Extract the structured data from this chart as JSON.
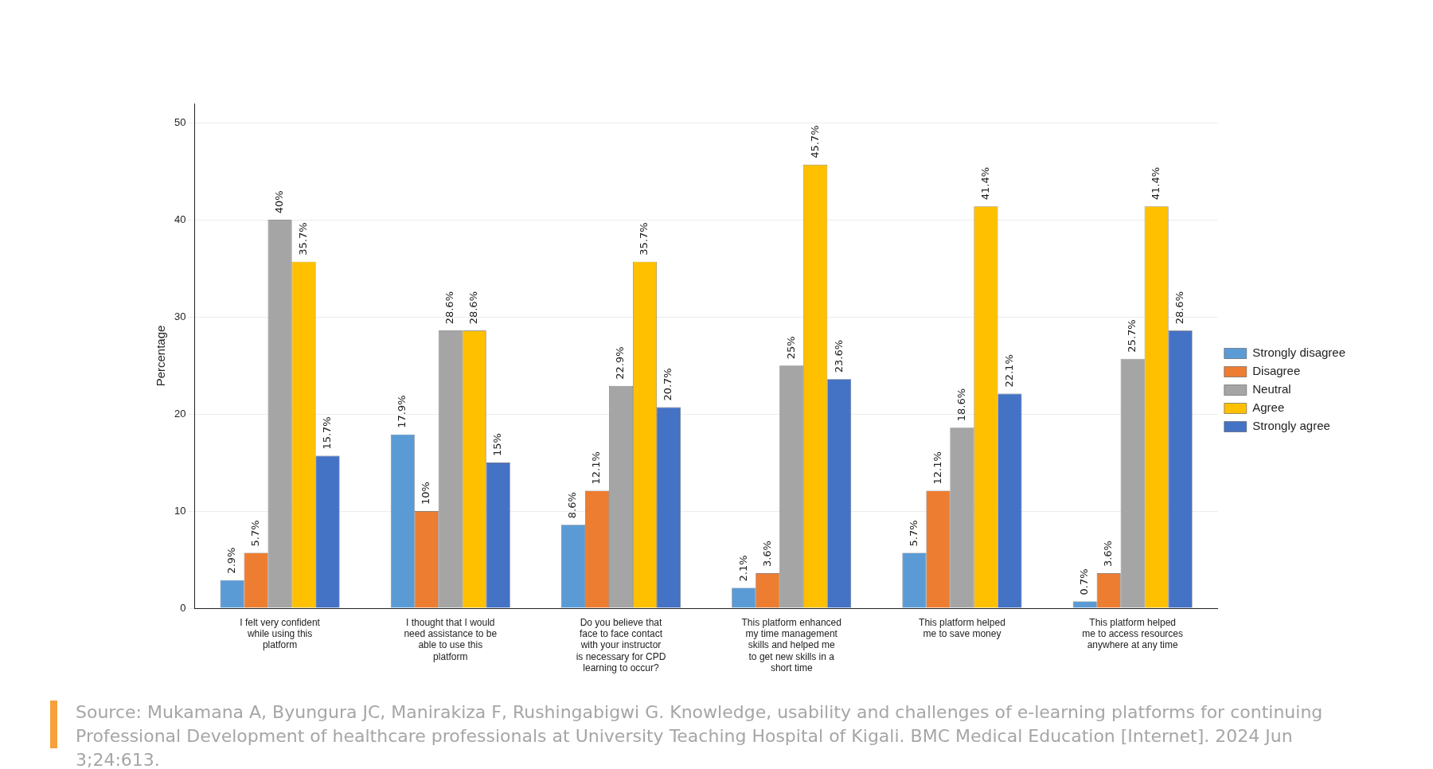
{
  "chart_data": {
    "type": "bar",
    "ylabel": "Percentage",
    "categories": [
      "I felt very confident while using this platform",
      "I thought that I would need assistance to be able to use this platform",
      "Do you believe that face to face contact with your instructor is necessary for CPD learning to occur?",
      "This platform enhanced my time management skills and helped me to get new skills in a short time",
      "This platform helped me to save money",
      "This platform helped me to access resources anywhere at any time"
    ],
    "series": [
      {
        "name": "Strongly disagree",
        "color": "#5b9bd5",
        "values": [
          2.9,
          17.9,
          8.6,
          2.1,
          5.7,
          0.7
        ],
        "value_labels": [
          "2.9%",
          "17.9%",
          "8.6%",
          "2.1%",
          "5.7%",
          "0.7%"
        ]
      },
      {
        "name": "Disagree",
        "color": "#ed7d31",
        "values": [
          5.7,
          10,
          12.1,
          3.6,
          12.1,
          3.6
        ],
        "value_labels": [
          "5.7%",
          "10%",
          "12.1%",
          "3.6%",
          "12.1%",
          "3.6%"
        ]
      },
      {
        "name": "Neutral",
        "color": "#a5a5a5",
        "values": [
          40,
          28.6,
          22.9,
          25,
          18.6,
          25.7
        ],
        "value_labels": [
          "40%",
          "28.6%",
          "22.9%",
          "25%",
          "18.6%",
          "25.7%"
        ]
      },
      {
        "name": "Agree",
        "color": "#ffc000",
        "values": [
          35.7,
          28.6,
          35.7,
          45.7,
          41.4,
          41.4
        ],
        "value_labels": [
          "35.7%",
          "28.6%",
          "35.7%",
          "45.7%",
          "41.4%",
          "41.4%"
        ]
      },
      {
        "name": "Strongly agree",
        "color": "#4472c4",
        "values": [
          15.7,
          15,
          20.7,
          23.6,
          22.1,
          28.6
        ],
        "value_labels": [
          "15.7%",
          "15%",
          "20.7%",
          "23.6%",
          "22.1%",
          "28.6%"
        ]
      }
    ],
    "ylim": [
      0,
      52
    ],
    "yticks": [
      0,
      10,
      20,
      30,
      40,
      50
    ],
    "grid": "y",
    "legend": "right",
    "annotations": [
      "Source: Mukamana A, Byungura JC, Manirakiza F, Rushingabigwi G. Knowledge, usability and challenges of e-learning platforms for continuing Professional Development of healthcare professionals at University Teaching Hospital of Kigali. BMC Medical Education [Internet]. 2024 Jun 3;24:613."
    ]
  }
}
